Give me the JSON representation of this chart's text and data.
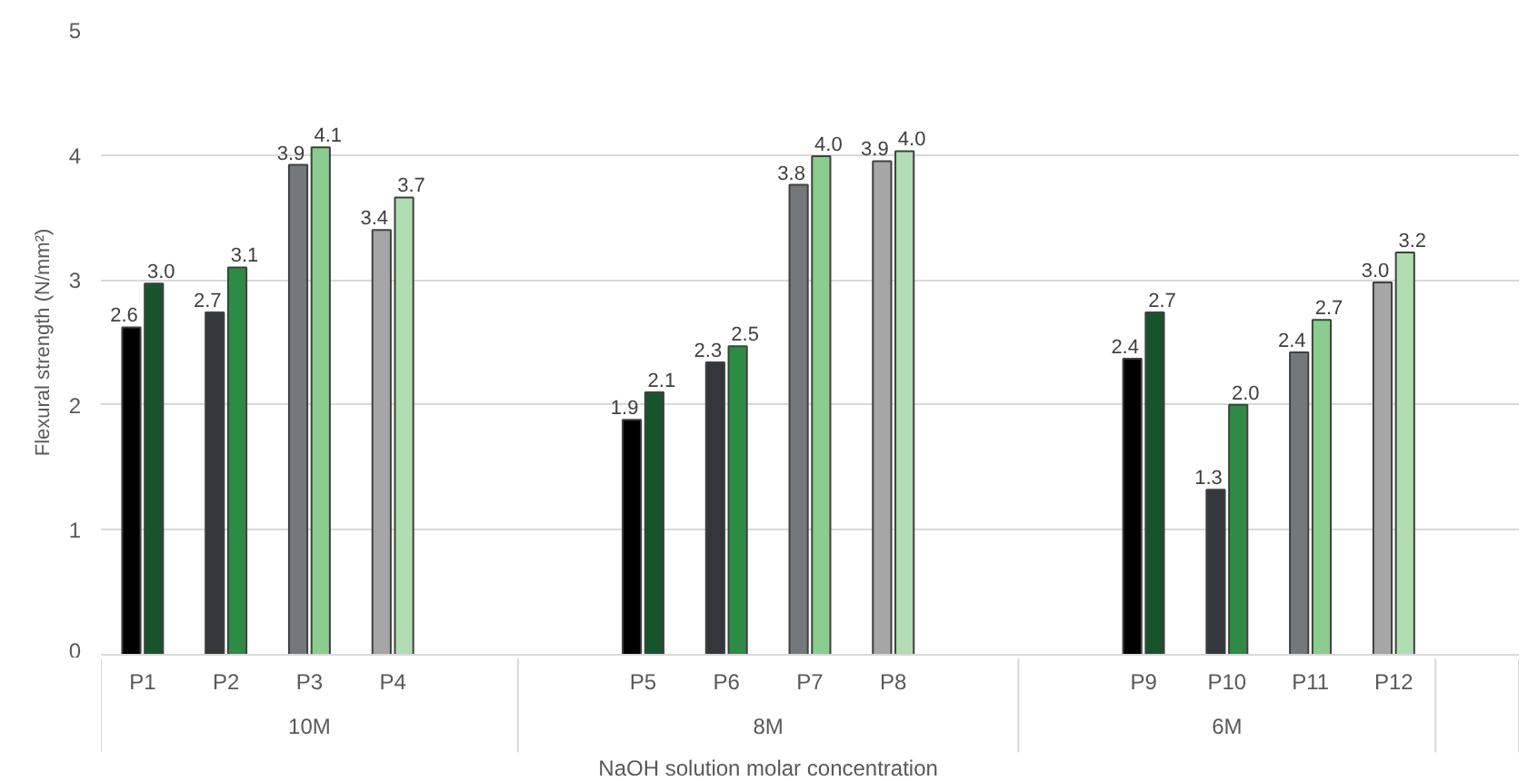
{
  "chart_data": {
    "type": "bar",
    "ylabel": "Flexural strength (N/mm²)",
    "xlabel": "NaOH solution molar concentration",
    "categories": [
      "P1",
      "P2",
      "P3",
      "P4",
      null,
      null,
      "P5",
      "P6",
      "P7",
      "P8",
      null,
      null,
      "P9",
      "P10",
      "P11",
      "P12",
      null
    ],
    "series": [
      {
        "colors": [
          "#000000",
          "#33363a",
          "#75787b",
          "#a6a6a6",
          null,
          null,
          "#000000",
          "#33363a",
          "#75787b",
          "#a6a6a6",
          null,
          null,
          "#000000",
          "#33363a",
          "#75787b",
          "#a6a6a6",
          null
        ],
        "values": [
          2.62,
          2.74,
          3.92,
          3.4,
          null,
          null,
          1.88,
          2.34,
          3.76,
          3.95,
          null,
          null,
          2.37,
          1.32,
          2.42,
          2.98,
          null
        ],
        "value_labels": [
          "2.6",
          "2.7",
          "3.9",
          "3.4",
          null,
          null,
          "1.9",
          "2.3",
          "3.8",
          "3.9",
          null,
          null,
          "2.4",
          "1.3",
          "2.4",
          "3.0",
          null
        ]
      },
      {
        "colors": [
          "#17542b",
          "#2e8b45",
          "#8acd8e",
          "#b0ddb2",
          null,
          null,
          "#17542b",
          "#2e8b45",
          "#8acd8e",
          "#b0ddb2",
          null,
          null,
          "#17542b",
          "#2e8b45",
          "#8acd8e",
          "#b0ddb2",
          null
        ],
        "values": [
          2.97,
          3.1,
          4.06,
          3.66,
          null,
          null,
          2.1,
          2.47,
          3.99,
          4.03,
          null,
          null,
          2.74,
          2.0,
          2.68,
          3.22,
          null
        ],
        "value_labels": [
          "3.0",
          "3.1",
          "4.1",
          "3.7",
          null,
          null,
          "2.1",
          "2.5",
          "4.0",
          "4.0",
          null,
          null,
          "2.7",
          "2.0",
          "2.7",
          "3.2",
          null
        ]
      }
    ],
    "annotations": [
      "10M",
      "8M",
      "6M"
    ],
    "ylim": [
      0,
      5
    ],
    "yticks": [
      0,
      1,
      2,
      3,
      4,
      5
    ],
    "grid": "y"
  }
}
